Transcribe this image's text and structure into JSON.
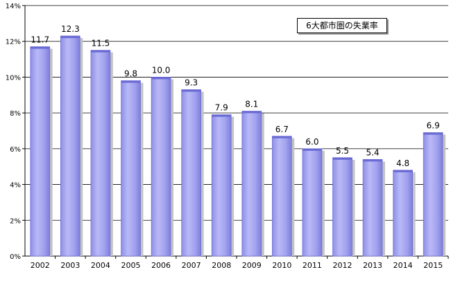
{
  "chart_data": {
    "type": "bar",
    "title": "6大都市圏の失業率",
    "categories": [
      "2002",
      "2003",
      "2004",
      "2005",
      "2006",
      "2007",
      "2008",
      "2009",
      "2010",
      "2011",
      "2012",
      "2013",
      "2014",
      "2015"
    ],
    "values": [
      11.7,
      12.3,
      11.5,
      9.8,
      10.0,
      9.3,
      7.9,
      8.1,
      6.7,
      6.0,
      5.5,
      5.4,
      4.8,
      6.9
    ],
    "value_labels": [
      "11.7",
      "12.3",
      "11.5",
      "9.8",
      "10.0",
      "9.3",
      "7.9",
      "8.1",
      "6.7",
      "6.0",
      "5.5",
      "5.4",
      "4.8",
      "6.9"
    ],
    "y_ticks": [
      "0%",
      "2%",
      "4%",
      "6%",
      "8%",
      "10%",
      "12%",
      "14%"
    ],
    "ylim": [
      0,
      14
    ],
    "xlabel": "",
    "ylabel": "",
    "grid": true,
    "legend_position": "top-right",
    "bar_color": "#a7a7f0",
    "bar_edge_color": "#6e6ed8"
  }
}
